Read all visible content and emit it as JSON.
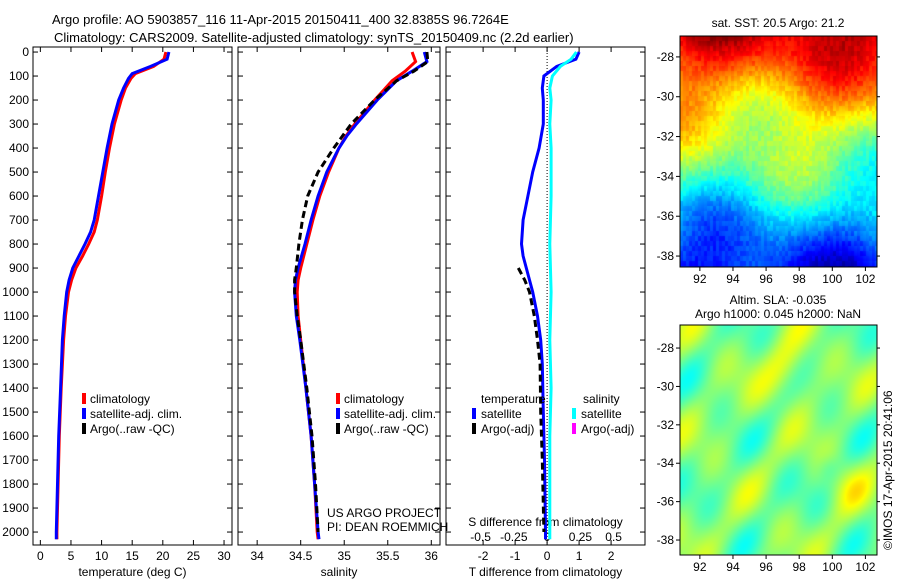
{
  "title": {
    "line1": "Argo profile: AO 5903857_116 11-Apr-2015 20150411_400 32.8385S 96.7264E",
    "line2": "Climatology: CARS2009. Satellite-adjusted climatology: synTS_20150409.nc (2.2d earlier)"
  },
  "credit": "©IMOS 17-Apr-2015 20:41:06",
  "project": {
    "line1": "US ARGO PROJECT",
    "line2": "PI: DEAN ROEMMICH"
  },
  "chart_data": [
    {
      "type": "line",
      "id": "temperature",
      "xlabel": "temperature (deg C)",
      "xlim": [
        -1.2,
        31.3
      ],
      "ylim": [
        -21,
        2054
      ],
      "ylabel_ticks_shown": true,
      "xticks": [
        "0",
        "5",
        "10",
        "15",
        "20",
        "25",
        "30"
      ],
      "yticks": [
        "0",
        "100",
        "200",
        "300",
        "400",
        "500",
        "600",
        "700",
        "800",
        "900",
        "1000",
        "1100",
        "1200",
        "1300",
        "1400",
        "1500",
        "1600",
        "1700",
        "1800",
        "1900",
        "2000"
      ],
      "legend": [
        "climatology",
        "satellite-adj. clim.",
        "Argo(..raw -QC)"
      ],
      "series": [
        {
          "name": "climatology",
          "color": "#ff0000",
          "dash": false,
          "y": [
            0,
            30,
            60,
            90,
            110,
            150,
            200,
            300,
            400,
            500,
            600,
            700,
            750,
            800,
            850,
            900,
            950,
            1000,
            1100,
            1200,
            1400,
            1600,
            1800,
            2000,
            2030
          ],
          "x": [
            20.5,
            20.2,
            18.5,
            15.5,
            14.8,
            13.9,
            13.2,
            12.1,
            11.3,
            10.6,
            10.0,
            9.3,
            8.8,
            7.9,
            6.9,
            5.8,
            5.1,
            4.6,
            4.1,
            3.8,
            3.4,
            3.1,
            2.9,
            2.7,
            2.7
          ]
        },
        {
          "name": "satellite-adj. clim.",
          "color": "#0000ff",
          "dash": false,
          "y": [
            0,
            30,
            60,
            90,
            110,
            150,
            200,
            300,
            400,
            500,
            600,
            700,
            750,
            800,
            850,
            900,
            950,
            1000,
            1100,
            1200,
            1400,
            1600,
            1800,
            2000,
            2030
          ],
          "x": [
            21.0,
            20.7,
            18.0,
            15.0,
            14.4,
            13.6,
            12.8,
            11.7,
            10.9,
            10.2,
            9.5,
            8.8,
            8.2,
            7.3,
            6.3,
            5.3,
            4.7,
            4.3,
            3.9,
            3.6,
            3.3,
            3.0,
            2.8,
            2.6,
            2.6
          ]
        }
      ]
    },
    {
      "type": "line",
      "id": "salinity",
      "xlabel": "salinity",
      "xlim": [
        33.78,
        36.1
      ],
      "ylim": [
        -21,
        2054
      ],
      "xticks": [
        "34",
        "34.5",
        "35",
        "35.5",
        "36"
      ],
      "legend": [
        "climatology",
        "satellite-adj. clim.",
        "Argo(..raw -QC)"
      ],
      "series": [
        {
          "name": "climatology",
          "color": "#ff0000",
          "dash": false,
          "y": [
            0,
            40,
            80,
            120,
            200,
            300,
            350,
            400,
            500,
            600,
            700,
            800,
            900,
            950,
            1000,
            1100,
            1200,
            1400,
            1600,
            1800,
            2000,
            2030
          ],
          "x": [
            35.78,
            35.82,
            35.7,
            35.55,
            35.35,
            35.12,
            35.02,
            34.94,
            34.82,
            34.72,
            34.64,
            34.57,
            34.5,
            34.47,
            34.46,
            34.47,
            34.5,
            34.56,
            34.62,
            34.66,
            34.69,
            34.7
          ]
        },
        {
          "name": "satellite-adj. clim.",
          "color": "#0000ff",
          "dash": false,
          "y": [
            0,
            40,
            80,
            120,
            200,
            300,
            350,
            400,
            500,
            600,
            700,
            800,
            900,
            950,
            1000,
            1100,
            1200,
            1400,
            1600,
            1800,
            2000,
            2030
          ],
          "x": [
            35.92,
            35.95,
            35.78,
            35.6,
            35.38,
            35.14,
            35.03,
            34.94,
            34.8,
            34.7,
            34.62,
            34.55,
            34.47,
            34.44,
            34.43,
            34.45,
            34.49,
            34.56,
            34.62,
            34.66,
            34.7,
            34.71
          ]
        },
        {
          "name": "Argo(..raw -QC)",
          "color": "#000000",
          "dash": true,
          "y": [
            0,
            40,
            80,
            120,
            200,
            300,
            400,
            500,
            600,
            700,
            800,
            900,
            950,
            1000,
            1100,
            1200,
            1400,
            1600,
            1800,
            2000
          ],
          "x": [
            35.95,
            35.96,
            35.8,
            35.6,
            35.35,
            35.08,
            34.88,
            34.7,
            34.58,
            34.52,
            34.48,
            34.45,
            34.43,
            34.43,
            34.46,
            34.5,
            34.57,
            34.63,
            34.67,
            34.7
          ]
        }
      ]
    },
    {
      "type": "line",
      "id": "difference",
      "xlabel": "T difference from climatology",
      "xlabel2": "S difference from climatology",
      "xlim": [
        -3.16,
        3.06
      ],
      "ylim": [
        -21,
        2054
      ],
      "xticks": [
        "-2",
        "-1",
        "0",
        "1",
        "2"
      ],
      "sticks": [
        "-0.5",
        "-0.25",
        "0",
        "0.25",
        "0.5"
      ],
      "s_scale": 4.16,
      "legend_t_title": "temperature",
      "legend_s_title": "salinity",
      "legend_t": [
        "satellite",
        "Argo(-adj)"
      ],
      "legend_s": [
        "satellite",
        "Argo(-adj)"
      ],
      "legend_colors": {
        "t_sat": "#0000ff",
        "t_argo": "#000000",
        "s_sat": "#00ffff",
        "s_argo": "#ff00ff"
      },
      "series": [
        {
          "name": "temperature satellite",
          "color": "#0000ff",
          "dash": false,
          "units": "T",
          "y": [
            0,
            30,
            60,
            100,
            150,
            200,
            300,
            400,
            500,
            600,
            700,
            800,
            850,
            900,
            950,
            1000,
            1100,
            1200,
            1300,
            1500,
            1700,
            2000,
            2030
          ],
          "x": [
            1.0,
            0.9,
            0.3,
            -0.1,
            -0.15,
            -0.12,
            -0.12,
            -0.25,
            -0.45,
            -0.6,
            -0.75,
            -0.8,
            -0.75,
            -0.65,
            -0.55,
            -0.45,
            -0.3,
            -0.2,
            -0.15,
            -0.12,
            -0.08,
            -0.05,
            -0.05
          ]
        },
        {
          "name": "temperature Argo(-adj)",
          "color": "#000000",
          "dash": true,
          "units": "T",
          "y": [
            900,
            950,
            1000,
            1100,
            1200,
            1300,
            1500,
            1700,
            2000
          ],
          "x": [
            -0.9,
            -0.7,
            -0.55,
            -0.4,
            -0.3,
            -0.22,
            -0.2,
            -0.15,
            -0.1
          ]
        },
        {
          "name": "salinity satellite",
          "color": "#00ffff",
          "dash": false,
          "units": "S",
          "y": [
            0,
            30,
            60,
            100,
            150,
            200,
            300,
            400,
            600,
            800,
            1000,
            1200,
            1400,
            1600,
            1800,
            2000,
            2030
          ],
          "x": [
            0.22,
            0.18,
            0.1,
            0.04,
            0.02,
            0.03,
            0.02,
            0.03,
            0.03,
            0.02,
            0.03,
            0.02,
            0.03,
            0.02,
            0.02,
            0.02,
            0.02
          ]
        }
      ]
    },
    {
      "type": "heatmap",
      "id": "sst-map",
      "title": "sat. SST: 20.5 Argo: 21.2",
      "xlim": [
        90.8,
        102.7
      ],
      "ylim": [
        -26.95,
        -38.55
      ],
      "xticks": [
        "92",
        "94",
        "96",
        "98",
        "100",
        "102"
      ],
      "yticks": [
        "-28",
        "-30",
        "-32",
        "-34",
        "-36",
        "-38"
      ],
      "colormap": "jet"
    },
    {
      "type": "heatmap",
      "id": "sla-map",
      "title": "Altim. SLA: -0.035",
      "subtitle": "Argo h1000: 0.045 h2000: NaN",
      "xlim": [
        90.8,
        102.7
      ],
      "ylim": [
        -26.8,
        -38.78
      ],
      "xticks": [
        "92",
        "94",
        "96",
        "98",
        "100",
        "102"
      ],
      "yticks": [
        "-28",
        "-30",
        "-32",
        "-34",
        "-36",
        "-38"
      ],
      "colormap": "jet"
    }
  ]
}
